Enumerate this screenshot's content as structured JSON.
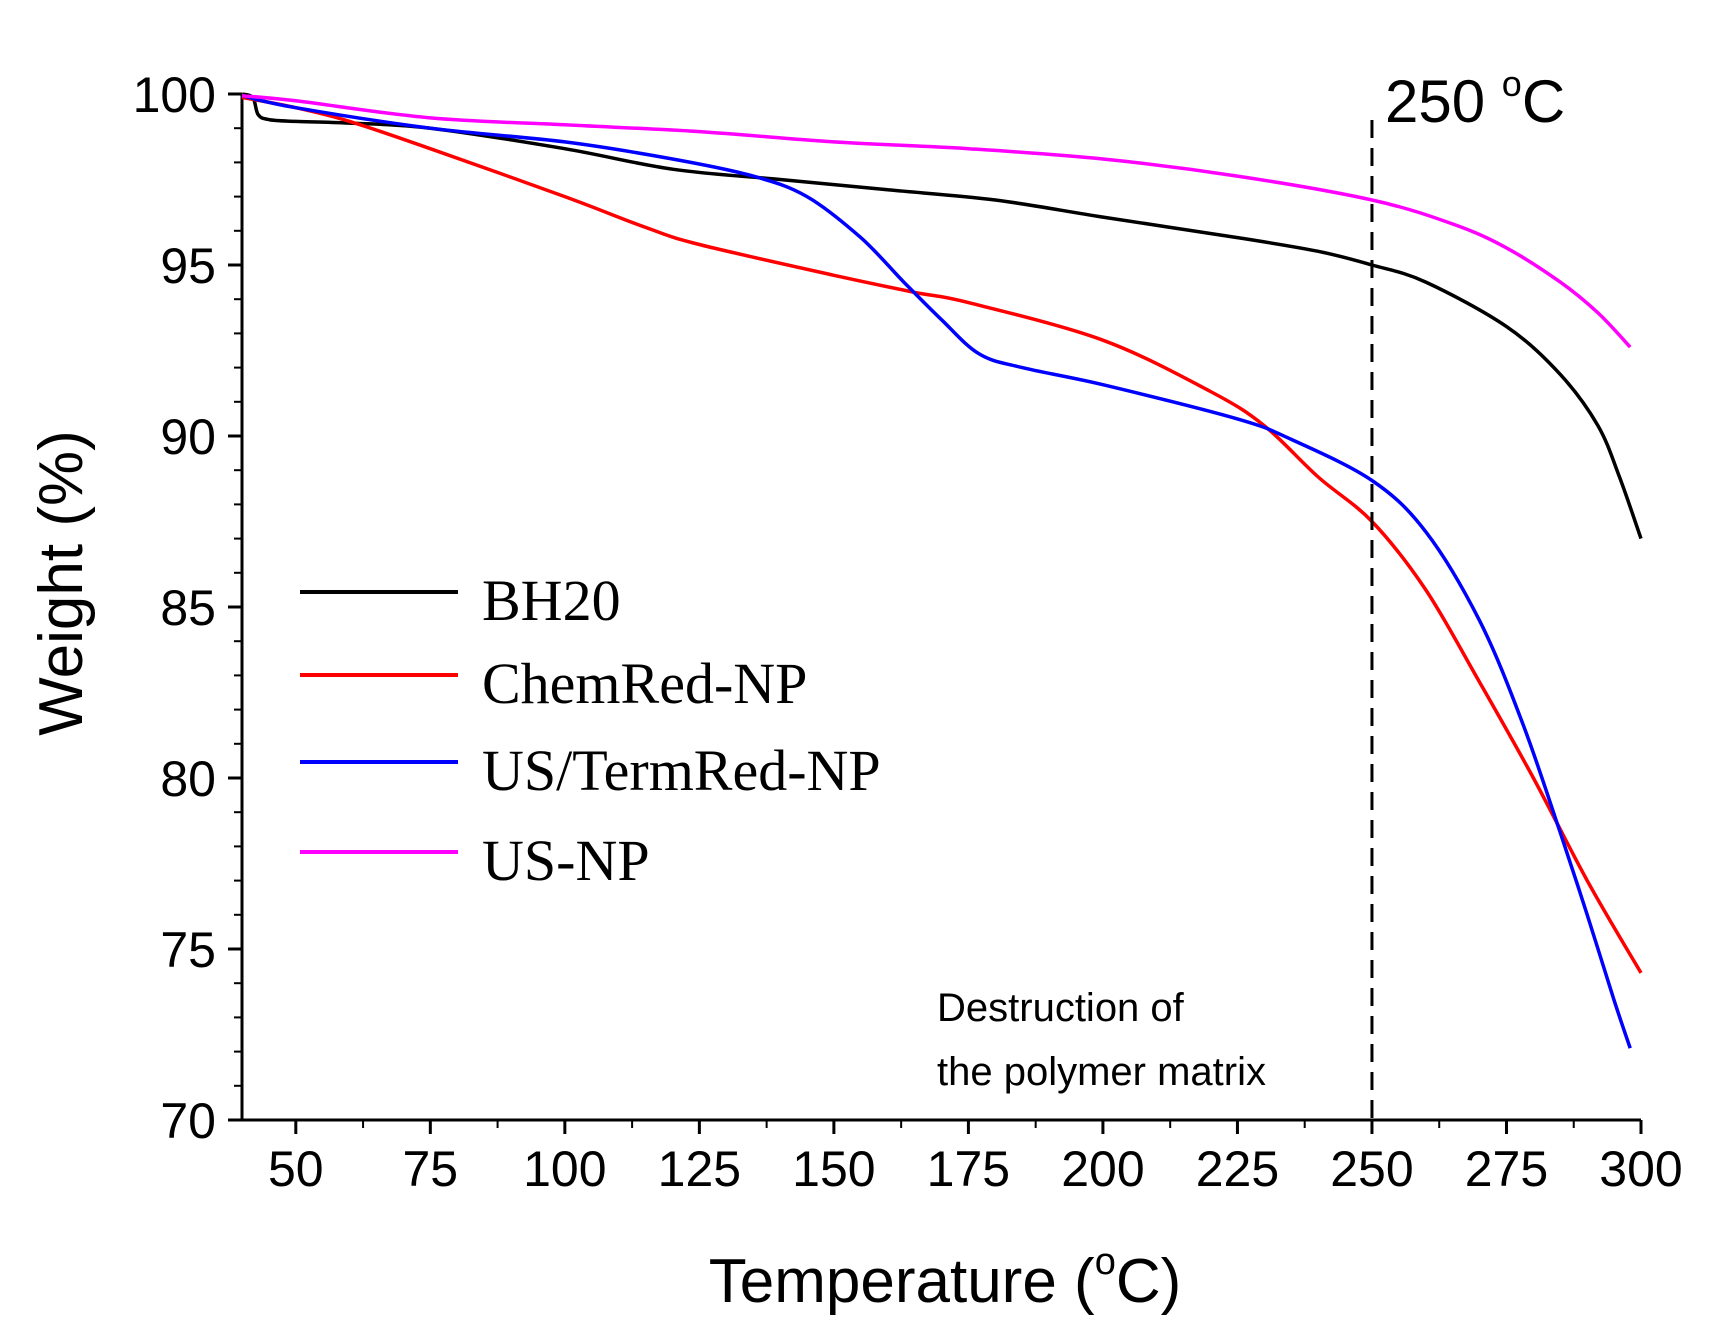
{
  "chart_data": {
    "type": "line",
    "xlabel": "Temperature (",
    "xlabel_sup": "o",
    "xlabel_end": "C)",
    "ylabel": "Weight (%)",
    "xlim": [
      40,
      300
    ],
    "ylim": [
      70,
      100
    ],
    "x_ticks": [
      50,
      75,
      100,
      125,
      150,
      175,
      200,
      225,
      250,
      275,
      300
    ],
    "y_ticks": [
      70,
      75,
      80,
      85,
      90,
      95,
      100
    ],
    "x_tick_labels": [
      "50",
      "75",
      "100",
      "125",
      "150",
      "175",
      "200",
      "225",
      "250",
      "275",
      "300"
    ],
    "y_tick_labels": [
      "70",
      "75",
      "80",
      "85",
      "90",
      "95",
      "100"
    ],
    "grid": false,
    "legend_position": "left",
    "series": [
      {
        "name": "BH20",
        "color": "#000000",
        "points": [
          [
            40,
            100
          ],
          [
            42,
            99.9
          ],
          [
            43,
            99.4
          ],
          [
            45,
            99.25
          ],
          [
            50,
            99.2
          ],
          [
            60,
            99.15
          ],
          [
            75,
            99.0
          ],
          [
            100,
            98.4
          ],
          [
            120,
            97.8
          ],
          [
            140,
            97.5
          ],
          [
            160,
            97.2
          ],
          [
            180,
            96.9
          ],
          [
            200,
            96.4
          ],
          [
            225,
            95.8
          ],
          [
            240,
            95.4
          ],
          [
            250,
            95.0
          ],
          [
            260,
            94.5
          ],
          [
            275,
            93.2
          ],
          [
            285,
            91.8
          ],
          [
            292,
            90.3
          ],
          [
            296,
            88.8
          ],
          [
            300,
            87.0
          ]
        ]
      },
      {
        "name": "ChemRed-NP",
        "color": "#ff0000",
        "points": [
          [
            40,
            99.9
          ],
          [
            50,
            99.6
          ],
          [
            60,
            99.2
          ],
          [
            75,
            98.4
          ],
          [
            100,
            97.0
          ],
          [
            115,
            96.1
          ],
          [
            125,
            95.6
          ],
          [
            150,
            94.7
          ],
          [
            165,
            94.2
          ],
          [
            175,
            93.9
          ],
          [
            200,
            92.8
          ],
          [
            220,
            91.3
          ],
          [
            230,
            90.3
          ],
          [
            240,
            88.8
          ],
          [
            250,
            87.5
          ],
          [
            260,
            85.5
          ],
          [
            270,
            82.8
          ],
          [
            280,
            80.0
          ],
          [
            290,
            77.0
          ],
          [
            300,
            74.3
          ]
        ]
      },
      {
        "name": "US/TermRed-NP",
        "color": "#0000ff",
        "points": [
          [
            40,
            99.95
          ],
          [
            50,
            99.6
          ],
          [
            75,
            99.0
          ],
          [
            100,
            98.6
          ],
          [
            120,
            98.1
          ],
          [
            135,
            97.6
          ],
          [
            145,
            97.0
          ],
          [
            155,
            95.8
          ],
          [
            163,
            94.5
          ],
          [
            170,
            93.4
          ],
          [
            177,
            92.4
          ],
          [
            185,
            92.0
          ],
          [
            200,
            91.5
          ],
          [
            225,
            90.5
          ],
          [
            235,
            89.9
          ],
          [
            250,
            88.7
          ],
          [
            260,
            87.2
          ],
          [
            270,
            84.6
          ],
          [
            278,
            81.6
          ],
          [
            285,
            78.4
          ],
          [
            290,
            76.0
          ],
          [
            295,
            73.5
          ],
          [
            298,
            72.1
          ]
        ]
      },
      {
        "name": "US-NP",
        "color": "#ff00ff",
        "points": [
          [
            40,
            99.95
          ],
          [
            50,
            99.8
          ],
          [
            75,
            99.3
          ],
          [
            100,
            99.1
          ],
          [
            125,
            98.9
          ],
          [
            150,
            98.6
          ],
          [
            175,
            98.4
          ],
          [
            200,
            98.1
          ],
          [
            225,
            97.6
          ],
          [
            250,
            96.9
          ],
          [
            265,
            96.2
          ],
          [
            275,
            95.5
          ],
          [
            285,
            94.5
          ],
          [
            292,
            93.6
          ],
          [
            298,
            92.6
          ]
        ]
      }
    ],
    "annotations": {
      "vline": {
        "x": 250,
        "label": "250 ",
        "label_sup": "o",
        "label_end": "C"
      },
      "text_line_1": "Destruction of",
      "text_line_2": "the polymer matrix"
    }
  }
}
